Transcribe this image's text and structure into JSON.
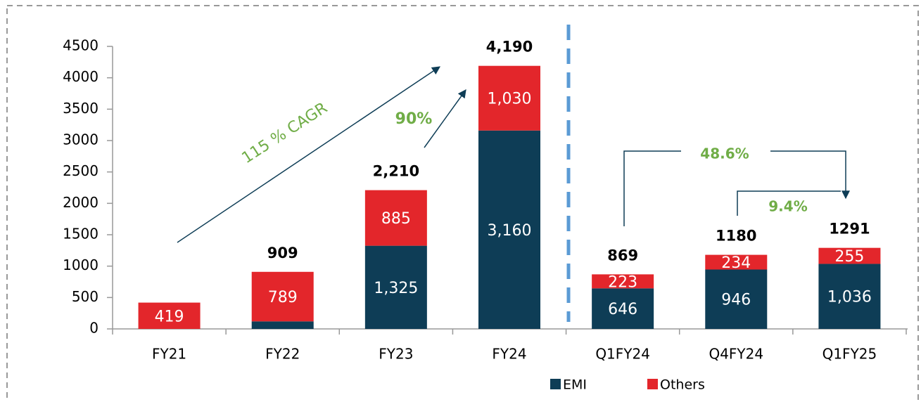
{
  "chart_data": {
    "type": "stacked_bar",
    "categories": [
      "FY21",
      "FY22",
      "FY23",
      "FY24",
      "Q1FY24",
      "Q4FY24",
      "Q1FY25"
    ],
    "series": [
      {
        "name": "EMI",
        "color": "#0e3d56",
        "values": [
          0,
          120,
          1325,
          3160,
          646,
          946,
          1036
        ],
        "value_labels": [
          null,
          null,
          "1,325",
          "3,160",
          "646",
          "946",
          "1,036"
        ]
      },
      {
        "name": "Others",
        "color": "#e3262b",
        "values": [
          419,
          789,
          885,
          1030,
          223,
          234,
          255
        ],
        "value_labels": [
          "419",
          "789",
          "885",
          "1,030",
          "223",
          "234",
          "255"
        ]
      }
    ],
    "totals": [
      null,
      909,
      2210,
      4190,
      869,
      1180,
      1291
    ],
    "total_labels": [
      null,
      "909",
      "2,210",
      "4,190",
      "869",
      "1180",
      "1291"
    ],
    "annotations": [
      "115 % CAGR",
      "90%",
      "48.6%",
      "9.4%"
    ],
    "ylim": [
      0,
      4500
    ],
    "yticks": [
      0,
      500,
      1000,
      1500,
      2000,
      2500,
      3000,
      3500,
      4000,
      4500
    ],
    "legend": "bottom"
  }
}
